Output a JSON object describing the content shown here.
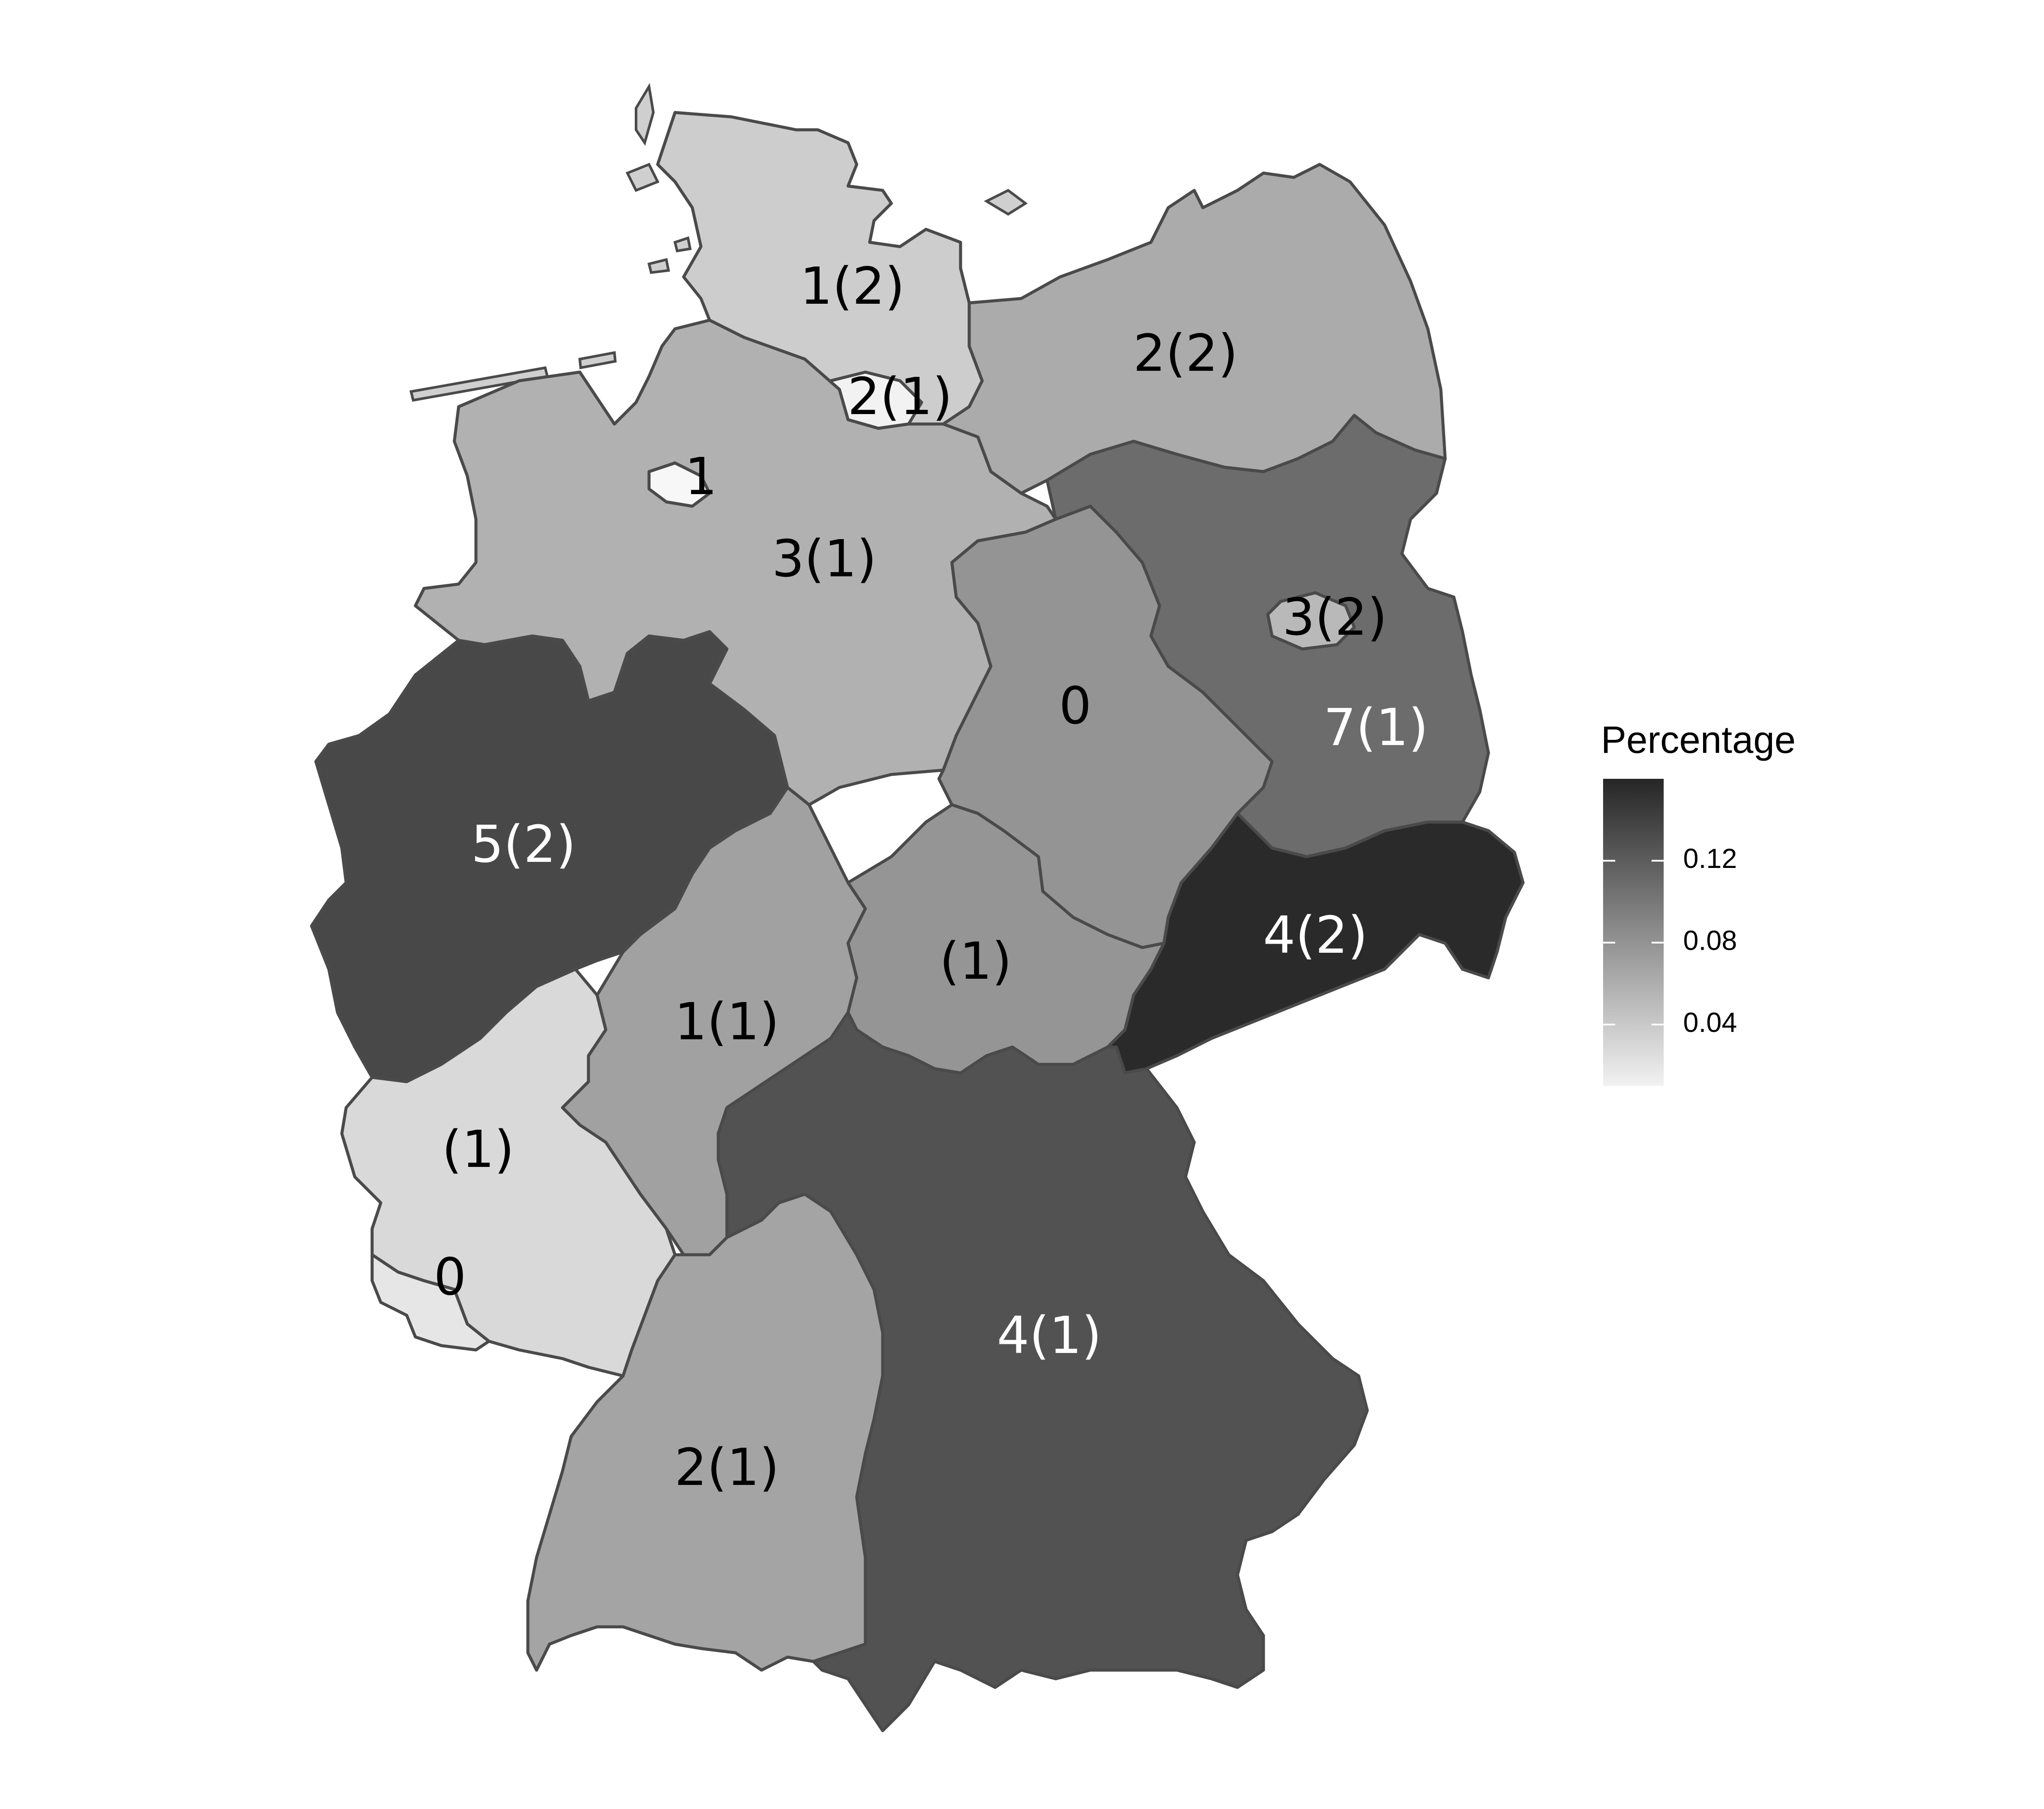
{
  "legend": {
    "title": "Percentage",
    "ticks": [
      {
        "value": 0.12,
        "label": "0.12"
      },
      {
        "value": 0.08,
        "label": "0.08"
      },
      {
        "value": 0.04,
        "label": "0.04"
      }
    ],
    "range": [
      0.01,
      0.16
    ],
    "color_low": "#f2f2f2",
    "color_high": "#262626"
  },
  "regions": [
    {
      "id": "schleswig-holstein",
      "label": "1(2)",
      "fill": "#cdcdcd",
      "label_color": "#000000"
    },
    {
      "id": "hamburg",
      "label": "2(1)",
      "fill": "#f2f2f2",
      "label_color": "#000000"
    },
    {
      "id": "mecklenburg-vorpommern",
      "label": "2(2)",
      "fill": "#ababab",
      "label_color": "#000000"
    },
    {
      "id": "bremen",
      "label": "1",
      "fill": "#f7f7f7",
      "label_color": "#000000"
    },
    {
      "id": "niedersachsen",
      "label": "3(1)",
      "fill": "#b1b1b1",
      "label_color": "#000000"
    },
    {
      "id": "berlin",
      "label": "3(2)",
      "fill": "#b9b9b9",
      "label_color": "#000000"
    },
    {
      "id": "brandenburg",
      "label": "7(1)",
      "fill": "#6c6c6c",
      "label_color": "#ffffff"
    },
    {
      "id": "sachsen-anhalt",
      "label": "0",
      "fill": "#949494",
      "label_color": "#000000"
    },
    {
      "id": "nordrhein-westfalen",
      "label": "5(2)",
      "fill": "#484848",
      "label_color": "#ffffff"
    },
    {
      "id": "hessen",
      "label": "1(1)",
      "fill": "#a1a1a1",
      "label_color": "#000000"
    },
    {
      "id": "thueringen",
      "label": "(1)",
      "fill": "#959595",
      "label_color": "#000000"
    },
    {
      "id": "sachsen",
      "label": "4(2)",
      "fill": "#2a2a2a",
      "label_color": "#ffffff"
    },
    {
      "id": "rheinland-pfalz",
      "label": "(1)",
      "fill": "#d9d9d9",
      "label_color": "#000000"
    },
    {
      "id": "saarland",
      "label": "0",
      "fill": "#e6e6e6",
      "label_color": "#000000"
    },
    {
      "id": "baden-wuerttemberg",
      "label": "2(1)",
      "fill": "#a4a4a4",
      "label_color": "#000000"
    },
    {
      "id": "bayern",
      "label": "4(1)",
      "fill": "#525252",
      "label_color": "#ffffff"
    }
  ]
}
